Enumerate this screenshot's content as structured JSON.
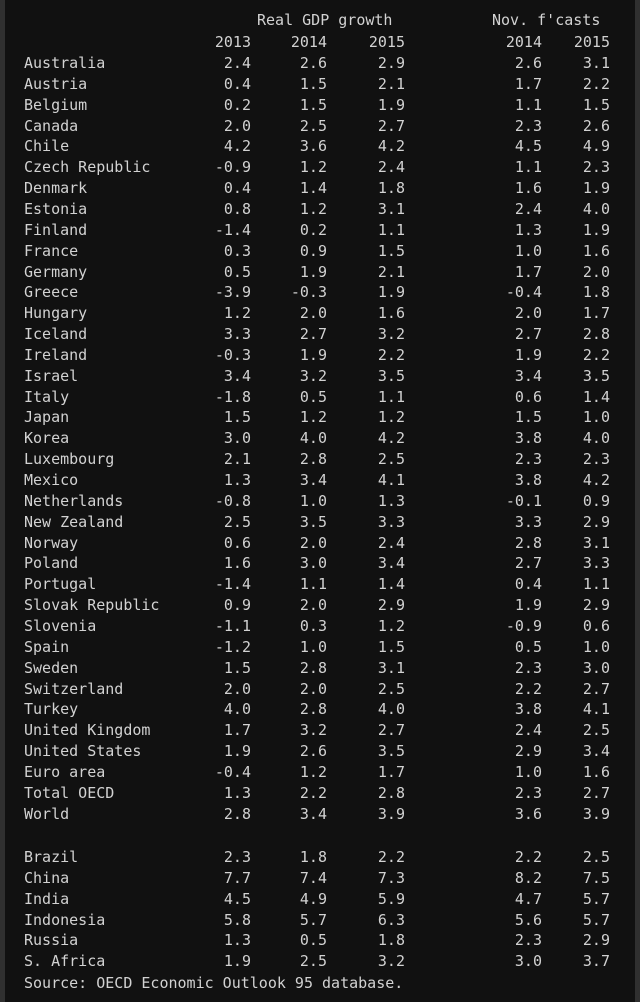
{
  "headers": {
    "group1": "Real GDP growth",
    "group2": "Nov. f'casts",
    "years1": [
      "2013",
      "2014",
      "2015"
    ],
    "years2": [
      "2014",
      "2015"
    ]
  },
  "rows": [
    {
      "country": "Australia",
      "v": [
        "2.4",
        "2.6",
        "2.9",
        "2.6",
        "3.1"
      ]
    },
    {
      "country": "Austria",
      "v": [
        "0.4",
        "1.5",
        "2.1",
        "1.7",
        "2.2"
      ]
    },
    {
      "country": "Belgium",
      "v": [
        "0.2",
        "1.5",
        "1.9",
        "1.1",
        "1.5"
      ]
    },
    {
      "country": "Canada",
      "v": [
        "2.0",
        "2.5",
        "2.7",
        "2.3",
        "2.6"
      ]
    },
    {
      "country": "Chile",
      "v": [
        "4.2",
        "3.6",
        "4.2",
        "4.5",
        "4.9"
      ]
    },
    {
      "country": "Czech Republic",
      "v": [
        "-0.9",
        "1.2",
        "2.4",
        "1.1",
        "2.3"
      ]
    },
    {
      "country": "Denmark",
      "v": [
        "0.4",
        "1.4",
        "1.8",
        "1.6",
        "1.9"
      ]
    },
    {
      "country": "Estonia",
      "v": [
        "0.8",
        "1.2",
        "3.1",
        "2.4",
        "4.0"
      ]
    },
    {
      "country": "Finland",
      "v": [
        "-1.4",
        "0.2",
        "1.1",
        "1.3",
        "1.9"
      ]
    },
    {
      "country": "France",
      "v": [
        "0.3",
        "0.9",
        "1.5",
        "1.0",
        "1.6"
      ]
    },
    {
      "country": "Germany",
      "v": [
        "0.5",
        "1.9",
        "2.1",
        "1.7",
        "2.0"
      ]
    },
    {
      "country": "Greece",
      "v": [
        "-3.9",
        "-0.3",
        "1.9",
        "-0.4",
        "1.8"
      ]
    },
    {
      "country": "Hungary",
      "v": [
        "1.2",
        "2.0",
        "1.6",
        "2.0",
        "1.7"
      ]
    },
    {
      "country": "Iceland",
      "v": [
        "3.3",
        "2.7",
        "3.2",
        "2.7",
        "2.8"
      ]
    },
    {
      "country": "Ireland",
      "v": [
        "-0.3",
        "1.9",
        "2.2",
        "1.9",
        "2.2"
      ]
    },
    {
      "country": "Israel",
      "v": [
        "3.4",
        "3.2",
        "3.5",
        "3.4",
        "3.5"
      ]
    },
    {
      "country": "Italy",
      "v": [
        "-1.8",
        "0.5",
        "1.1",
        "0.6",
        "1.4"
      ]
    },
    {
      "country": "Japan",
      "v": [
        "1.5",
        "1.2",
        "1.2",
        "1.5",
        "1.0"
      ]
    },
    {
      "country": "Korea",
      "v": [
        "3.0",
        "4.0",
        "4.2",
        "3.8",
        "4.0"
      ]
    },
    {
      "country": "Luxembourg",
      "v": [
        "2.1",
        "2.8",
        "2.5",
        "2.3",
        "2.3"
      ]
    },
    {
      "country": "Mexico",
      "v": [
        "1.3",
        "3.4",
        "4.1",
        "3.8",
        "4.2"
      ]
    },
    {
      "country": "Netherlands",
      "v": [
        "-0.8",
        "1.0",
        "1.3",
        "-0.1",
        "0.9"
      ]
    },
    {
      "country": "New Zealand",
      "v": [
        "2.5",
        "3.5",
        "3.3",
        "3.3",
        "2.9"
      ]
    },
    {
      "country": "Norway",
      "v": [
        "0.6",
        "2.0",
        "2.4",
        "2.8",
        "3.1"
      ]
    },
    {
      "country": "Poland",
      "v": [
        "1.6",
        "3.0",
        "3.4",
        "2.7",
        "3.3"
      ]
    },
    {
      "country": "Portugal",
      "v": [
        "-1.4",
        "1.1",
        "1.4",
        "0.4",
        "1.1"
      ]
    },
    {
      "country": "Slovak Republic",
      "v": [
        "0.9",
        "2.0",
        "2.9",
        "1.9",
        "2.9"
      ]
    },
    {
      "country": "Slovenia",
      "v": [
        "-1.1",
        "0.3",
        "1.2",
        "-0.9",
        "0.6"
      ]
    },
    {
      "country": "Spain",
      "v": [
        "-1.2",
        "1.0",
        "1.5",
        "0.5",
        "1.0"
      ]
    },
    {
      "country": "Sweden",
      "v": [
        "1.5",
        "2.8",
        "3.1",
        "2.3",
        "3.0"
      ]
    },
    {
      "country": "Switzerland",
      "v": [
        "2.0",
        "2.0",
        "2.5",
        "2.2",
        "2.7"
      ]
    },
    {
      "country": "Turkey",
      "v": [
        "4.0",
        "2.8",
        "4.0",
        "3.8",
        "4.1"
      ]
    },
    {
      "country": "United Kingdom",
      "v": [
        "1.7",
        "3.2",
        "2.7",
        "2.4",
        "2.5"
      ]
    },
    {
      "country": "United States",
      "v": [
        "1.9",
        "2.6",
        "3.5",
        "2.9",
        "3.4"
      ]
    },
    {
      "country": "Euro area",
      "v": [
        "-0.4",
        "1.2",
        "1.7",
        "1.0",
        "1.6"
      ]
    },
    {
      "country": "Total OECD",
      "v": [
        "1.3",
        "2.2",
        "2.8",
        "2.3",
        "2.7"
      ]
    },
    {
      "country": "World",
      "v": [
        "2.8",
        "3.4",
        "3.9",
        "3.6",
        "3.9"
      ]
    }
  ],
  "rows2": [
    {
      "country": "Brazil",
      "v": [
        "2.3",
        "1.8",
        "2.2",
        "2.2",
        "2.5"
      ]
    },
    {
      "country": "China",
      "v": [
        "7.7",
        "7.4",
        "7.3",
        "8.2",
        "7.5"
      ]
    },
    {
      "country": "India",
      "v": [
        "4.5",
        "4.9",
        "5.9",
        "4.7",
        "5.7"
      ]
    },
    {
      "country": "Indonesia",
      "v": [
        "5.8",
        "5.7",
        "6.3",
        "5.6",
        "5.7"
      ]
    },
    {
      "country": "Russia",
      "v": [
        "1.3",
        "0.5",
        "1.8",
        "2.3",
        "2.9"
      ]
    },
    {
      "country": "S. Africa",
      "v": [
        "1.9",
        "2.5",
        "3.2",
        "3.0",
        "3.7"
      ]
    }
  ],
  "source": "Source: OECD Economic Outlook 95 database."
}
